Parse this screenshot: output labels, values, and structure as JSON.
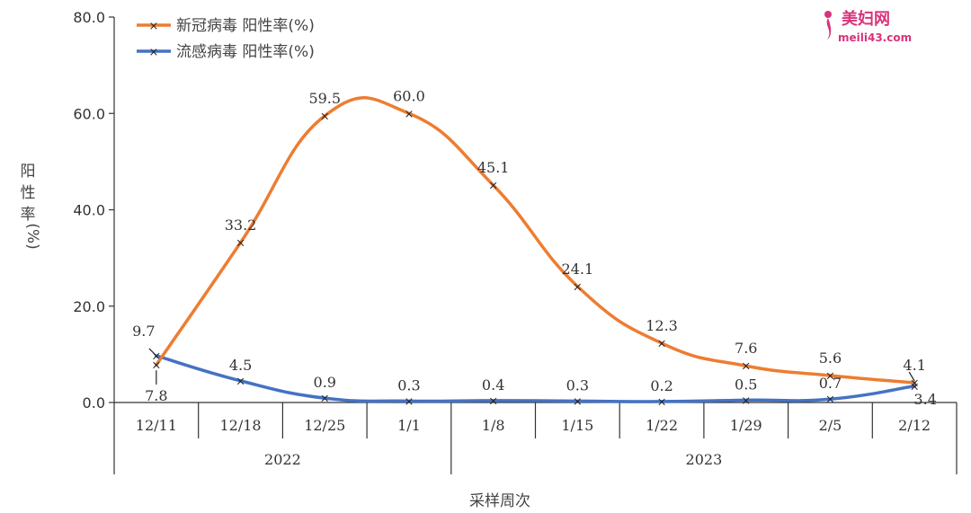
{
  "chart_data": {
    "type": "line",
    "title": "",
    "xlabel": "采样周次",
    "ylabel": "阳性率(%)",
    "ylim": [
      0,
      80
    ],
    "yticks": [
      "0.0",
      "20.0",
      "40.0",
      "60.0",
      "80.0"
    ],
    "categories": [
      "12/11",
      "12/18",
      "12/25",
      "1/1",
      "1/8",
      "1/15",
      "1/22",
      "1/29",
      "2/5",
      "2/12"
    ],
    "year_groups": [
      {
        "label": "2022",
        "categories": [
          "12/11",
          "12/18",
          "12/25",
          "1/1"
        ]
      },
      {
        "label": "2023",
        "categories": [
          "1/8",
          "1/15",
          "1/22",
          "1/29",
          "2/5",
          "2/12"
        ]
      }
    ],
    "legend_position": "top-left",
    "grid": false,
    "series": [
      {
        "name": "新冠病毒 阳性率(%)",
        "color": "#ed7d31",
        "values": [
          7.8,
          33.2,
          59.5,
          60.0,
          45.1,
          24.1,
          12.3,
          7.6,
          5.6,
          4.1
        ],
        "labels": [
          "7.8",
          "33.2",
          "59.5",
          "60.0",
          "45.1",
          "24.1",
          "12.3",
          "7.6",
          "5.6",
          "4.1"
        ]
      },
      {
        "name": "流感病毒 阳性率(%)",
        "color": "#4472c4",
        "values": [
          9.7,
          4.5,
          0.9,
          0.3,
          0.4,
          0.3,
          0.2,
          0.5,
          0.7,
          3.4
        ],
        "labels": [
          "9.7",
          "4.5",
          "0.9",
          "0.3",
          "0.4",
          "0.3",
          "0.2",
          "0.5",
          "0.7",
          "3.4"
        ]
      }
    ]
  },
  "watermark": {
    "line1": "美妇网",
    "line2": "meili43.com",
    "icon": "woman-silhouette-icon"
  }
}
